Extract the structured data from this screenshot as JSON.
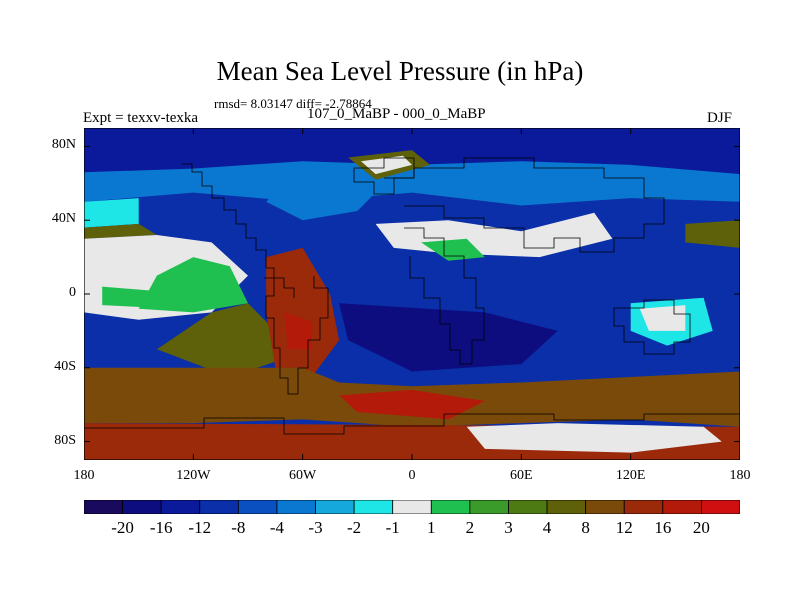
{
  "title": "Mean Sea Level Pressure (in hPa)",
  "stats": "rmsd= 8.03147 diff= -2.78864",
  "left_label": "Expt = texxv-texka",
  "center_label": "107_0_MaBP - 000_0_MaBP",
  "right_label": "DJF",
  "lat_ticks": [
    "80N",
    "40N",
    "0",
    "40S",
    "80S"
  ],
  "lat_values": [
    80,
    40,
    0,
    -40,
    -80
  ],
  "lon_ticks": [
    "180",
    "120W",
    "60W",
    "0",
    "60E",
    "120E",
    "180"
  ],
  "lon_values": [
    -180,
    -120,
    -60,
    0,
    60,
    120,
    180
  ],
  "colorbar": {
    "labels": [
      "-20",
      "-16",
      "-12",
      "-8",
      "-4",
      "-3",
      "-2",
      "-1",
      "1",
      "2",
      "3",
      "4",
      "8",
      "12",
      "16",
      "20"
    ],
    "colors": [
      "#1a0a5e",
      "#0d0d80",
      "#0a1a9a",
      "#0a2fa8",
      "#0a50c0",
      "#0a78d0",
      "#14a8dc",
      "#1ee6e6",
      "#e8e8e8",
      "#20c050",
      "#3a9a2a",
      "#4e7a14",
      "#5e600a",
      "#7a4a0a",
      "#9a2a0a",
      "#b41a0a",
      "#d01010"
    ]
  },
  "map_regions": [
    {
      "level": 2,
      "pts": [
        [
          -180,
          90
        ],
        [
          180,
          90
        ],
        [
          180,
          65
        ],
        [
          120,
          70
        ],
        [
          60,
          72
        ],
        [
          0,
          70
        ],
        [
          -60,
          72
        ],
        [
          -120,
          68
        ],
        [
          -180,
          66
        ]
      ]
    },
    {
      "level": 5,
      "pts": [
        [
          -180,
          66
        ],
        [
          -120,
          68
        ],
        [
          -60,
          72
        ],
        [
          0,
          70
        ],
        [
          60,
          72
        ],
        [
          120,
          70
        ],
        [
          180,
          65
        ],
        [
          180,
          50
        ],
        [
          120,
          52
        ],
        [
          60,
          48
        ],
        [
          0,
          55
        ],
        [
          -60,
          50
        ],
        [
          -120,
          55
        ],
        [
          -180,
          50
        ]
      ]
    },
    {
      "level": 7,
      "pts": [
        [
          -180,
          50
        ],
        [
          -150,
          52
        ],
        [
          -150,
          38
        ],
        [
          -180,
          36
        ]
      ]
    },
    {
      "level": 12,
      "pts": [
        [
          -180,
          36
        ],
        [
          -150,
          38
        ],
        [
          -140,
          32
        ],
        [
          -180,
          30
        ]
      ]
    },
    {
      "level": 8,
      "pts": [
        [
          -180,
          30
        ],
        [
          -140,
          32
        ],
        [
          -110,
          28
        ],
        [
          -90,
          10
        ],
        [
          -110,
          -10
        ],
        [
          -150,
          -14
        ],
        [
          -180,
          -10
        ]
      ]
    },
    {
      "level": 9,
      "pts": [
        [
          -120,
          20
        ],
        [
          -100,
          15
        ],
        [
          -90,
          -5
        ],
        [
          -120,
          -10
        ],
        [
          -150,
          -8
        ],
        [
          -140,
          10
        ]
      ]
    },
    {
      "level": 12,
      "pts": [
        [
          -110,
          -10
        ],
        [
          -90,
          -5
        ],
        [
          -75,
          -20
        ],
        [
          -70,
          -35
        ],
        [
          -100,
          -45
        ],
        [
          -140,
          -30
        ]
      ]
    },
    {
      "level": 14,
      "pts": [
        [
          -80,
          20
        ],
        [
          -60,
          25
        ],
        [
          -45,
          0
        ],
        [
          -40,
          -25
        ],
        [
          -55,
          -45
        ],
        [
          -75,
          -40
        ],
        [
          -80,
          -10
        ]
      ]
    },
    {
      "level": 15,
      "pts": [
        [
          -70,
          -10
        ],
        [
          -55,
          -15
        ],
        [
          -55,
          -30
        ],
        [
          -68,
          -30
        ]
      ]
    },
    {
      "level": 13,
      "pts": [
        [
          -180,
          -40
        ],
        [
          -60,
          -40
        ],
        [
          -40,
          -48
        ],
        [
          0,
          -50
        ],
        [
          60,
          -48
        ],
        [
          120,
          -45
        ],
        [
          180,
          -42
        ],
        [
          180,
          -72
        ],
        [
          120,
          -68
        ],
        [
          60,
          -70
        ],
        [
          0,
          -72
        ],
        [
          -60,
          -68
        ],
        [
          -120,
          -70
        ],
        [
          -180,
          -70
        ]
      ]
    },
    {
      "level": 15,
      "pts": [
        [
          -40,
          -55
        ],
        [
          0,
          -52
        ],
        [
          40,
          -58
        ],
        [
          20,
          -68
        ],
        [
          -30,
          -64
        ]
      ]
    },
    {
      "level": 14,
      "pts": [
        [
          -180,
          -70
        ],
        [
          180,
          -72
        ],
        [
          180,
          -90
        ],
        [
          -180,
          -90
        ]
      ]
    },
    {
      "level": 8,
      "pts": [
        [
          30,
          -72
        ],
        [
          80,
          -70
        ],
        [
          160,
          -72
        ],
        [
          170,
          -80
        ],
        [
          120,
          -86
        ],
        [
          40,
          -84
        ]
      ]
    },
    {
      "level": 3,
      "pts": [
        [
          -45,
          30
        ],
        [
          0,
          20
        ],
        [
          60,
          15
        ],
        [
          120,
          30
        ],
        [
          180,
          20
        ],
        [
          180,
          -40
        ],
        [
          120,
          -42
        ],
        [
          60,
          -46
        ],
        [
          0,
          -48
        ],
        [
          -40,
          -44
        ],
        [
          -35,
          -20
        ],
        [
          -40,
          10
        ]
      ]
    },
    {
      "level": 1,
      "pts": [
        [
          -40,
          -5
        ],
        [
          40,
          -10
        ],
        [
          80,
          -20
        ],
        [
          60,
          -38
        ],
        [
          0,
          -42
        ],
        [
          -35,
          -25
        ]
      ]
    },
    {
      "level": 5,
      "pts": [
        [
          -60,
          70
        ],
        [
          -40,
          65
        ],
        [
          -20,
          55
        ],
        [
          -30,
          45
        ],
        [
          -60,
          40
        ],
        [
          -80,
          50
        ]
      ]
    },
    {
      "level": 8,
      "pts": [
        [
          -20,
          38
        ],
        [
          20,
          40
        ],
        [
          60,
          34
        ],
        [
          100,
          44
        ],
        [
          110,
          30
        ],
        [
          70,
          20
        ],
        [
          20,
          22
        ],
        [
          -10,
          25
        ]
      ]
    },
    {
      "level": 9,
      "pts": [
        [
          5,
          28
        ],
        [
          30,
          30
        ],
        [
          40,
          20
        ],
        [
          20,
          18
        ]
      ]
    },
    {
      "level": 7,
      "pts": [
        [
          120,
          -5
        ],
        [
          160,
          -2
        ],
        [
          165,
          -20
        ],
        [
          140,
          -28
        ],
        [
          120,
          -20
        ]
      ]
    },
    {
      "level": 8,
      "pts": [
        [
          125,
          -8
        ],
        [
          150,
          -6
        ],
        [
          150,
          -20
        ],
        [
          130,
          -20
        ]
      ]
    },
    {
      "level": 12,
      "pts": [
        [
          -35,
          74
        ],
        [
          0,
          78
        ],
        [
          10,
          70
        ],
        [
          -20,
          62
        ]
      ]
    },
    {
      "level": 8,
      "pts": [
        [
          -28,
          72
        ],
        [
          -5,
          75
        ],
        [
          0,
          70
        ],
        [
          -20,
          65
        ]
      ]
    },
    {
      "level": 12,
      "pts": [
        [
          150,
          38
        ],
        [
          180,
          40
        ],
        [
          180,
          25
        ],
        [
          150,
          28
        ]
      ]
    },
    {
      "level": 9,
      "pts": [
        [
          -170,
          4
        ],
        [
          -120,
          0
        ],
        [
          -130,
          -8
        ],
        [
          -170,
          -6
        ]
      ]
    }
  ]
}
